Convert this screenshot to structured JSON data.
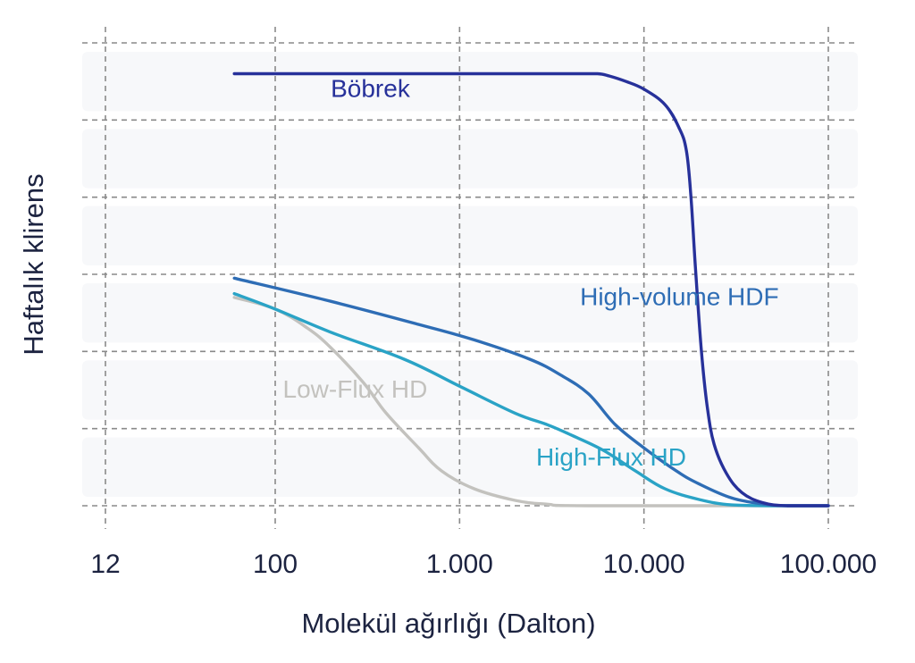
{
  "chart_data": {
    "type": "line",
    "title": "",
    "xlabel": "Molekül ağırlığı (Dalton)",
    "ylabel": "Haftalık klirens",
    "x_scale": "log",
    "xlim": [
      12,
      100000
    ],
    "ylim": [
      0,
      6
    ],
    "grid": true,
    "x_ticks": [
      {
        "value": 12,
        "label": "12"
      },
      {
        "value": 100,
        "label": "100"
      },
      {
        "value": 1000,
        "label": "1.000"
      },
      {
        "value": 10000,
        "label": "10.000"
      },
      {
        "value": 100000,
        "label": "100.000"
      }
    ],
    "y_grid_levels": [
      0,
      1,
      2,
      3,
      4,
      5,
      6
    ],
    "series": [
      {
        "name": "Böbrek",
        "color": "#27319a",
        "label_anchor": [
          200,
          5.3
        ],
        "points": [
          [
            60,
            5.6
          ],
          [
            700,
            5.6
          ],
          [
            4000,
            5.6
          ],
          [
            5600,
            5.6
          ],
          [
            6500,
            5.57
          ],
          [
            8000,
            5.5
          ],
          [
            10000,
            5.4
          ],
          [
            13000,
            5.2
          ],
          [
            15500,
            4.9
          ],
          [
            17000,
            4.6
          ],
          [
            18000,
            4.0
          ],
          [
            19000,
            3.1
          ],
          [
            20500,
            2.0
          ],
          [
            22000,
            1.3
          ],
          [
            24000,
            0.8
          ],
          [
            28000,
            0.42
          ],
          [
            34000,
            0.17
          ],
          [
            44000,
            0.04
          ],
          [
            60000,
            0.0
          ],
          [
            100000,
            0.0
          ]
        ]
      },
      {
        "name": "High-volume HDF",
        "color": "#2e6db5",
        "label_anchor": [
          4500,
          2.6
        ],
        "points": [
          [
            60,
            2.95
          ],
          [
            200,
            2.65
          ],
          [
            600,
            2.35
          ],
          [
            1200,
            2.15
          ],
          [
            2400,
            1.9
          ],
          [
            3500,
            1.7
          ],
          [
            5000,
            1.45
          ],
          [
            7000,
            1.05
          ],
          [
            10000,
            0.75
          ],
          [
            15000,
            0.45
          ],
          [
            20000,
            0.28
          ],
          [
            30000,
            0.1
          ],
          [
            45000,
            0.02
          ],
          [
            60000,
            0.0
          ],
          [
            100000,
            0.0
          ]
        ]
      },
      {
        "name": "High-Flux HD",
        "color": "#2aa3c6",
        "label_anchor": [
          2600,
          0.52
        ],
        "points": [
          [
            60,
            2.75
          ],
          [
            100,
            2.55
          ],
          [
            200,
            2.25
          ],
          [
            500,
            1.9
          ],
          [
            1000,
            1.55
          ],
          [
            2000,
            1.2
          ],
          [
            3000,
            1.05
          ],
          [
            4000,
            0.92
          ],
          [
            6000,
            0.72
          ],
          [
            9000,
            0.45
          ],
          [
            13000,
            0.22
          ],
          [
            20000,
            0.08
          ],
          [
            30000,
            0.01
          ],
          [
            50000,
            0.0
          ],
          [
            100000,
            0.0
          ]
        ]
      },
      {
        "name": "Low-Flux HD",
        "color": "#c3c2be",
        "label_anchor": [
          110,
          1.4
        ],
        "points": [
          [
            60,
            2.7
          ],
          [
            100,
            2.55
          ],
          [
            150,
            2.3
          ],
          [
            200,
            2.05
          ],
          [
            300,
            1.6
          ],
          [
            400,
            1.2
          ],
          [
            600,
            0.75
          ],
          [
            800,
            0.45
          ],
          [
            1200,
            0.22
          ],
          [
            2000,
            0.07
          ],
          [
            3000,
            0.02
          ],
          [
            5000,
            0.0
          ],
          [
            100000,
            0.0
          ]
        ]
      }
    ]
  }
}
